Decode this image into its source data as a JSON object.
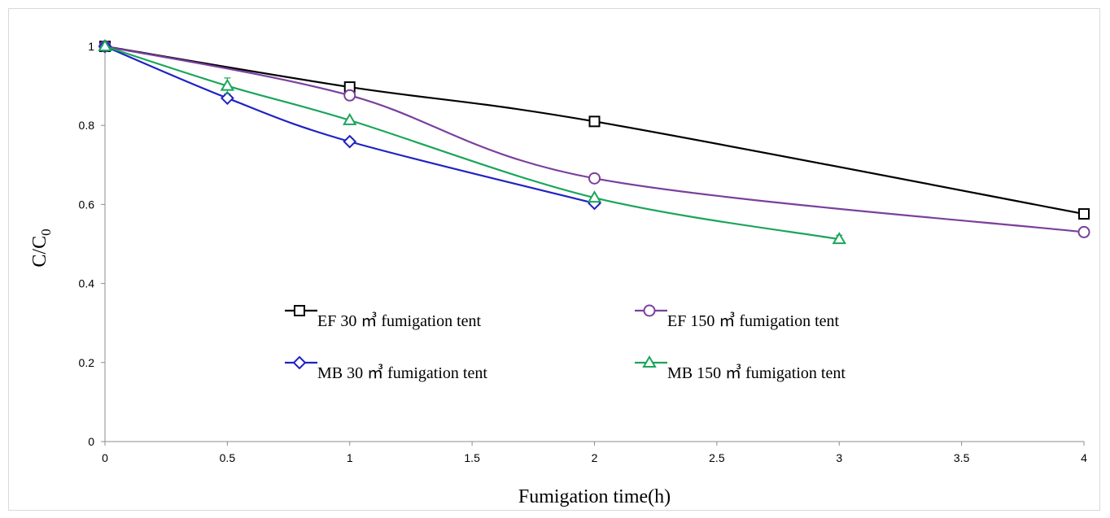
{
  "chart_data": {
    "type": "line",
    "title": "",
    "xlabel": "Fumigation time(h)",
    "ylabel": "C/C",
    "ylabel_subscript": "0",
    "xlim": [
      0,
      4
    ],
    "ylim": [
      0,
      1
    ],
    "x_ticks": [
      "0",
      "0.5",
      "1",
      "1.5",
      "2",
      "2.5",
      "3",
      "3.5",
      "4"
    ],
    "y_ticks": [
      "0",
      "0.2",
      "0.4",
      "0.6",
      "0.8",
      "1"
    ],
    "grid": false,
    "legend_position": "inside-center",
    "series": [
      {
        "name": "EF 30 ㎥ fumigation tent",
        "color": "#000000",
        "marker": "square",
        "x": [
          0,
          1,
          2,
          4
        ],
        "y": [
          1.0,
          0.897,
          0.81,
          0.576
        ]
      },
      {
        "name": "EF 150 ㎥ fumigation tent",
        "color": "#7b3f9e",
        "marker": "circle",
        "x": [
          0,
          1,
          2,
          4
        ],
        "y": [
          1.0,
          0.876,
          0.666,
          0.53
        ],
        "error": [
          0,
          0.012,
          0,
          0
        ]
      },
      {
        "name": "MB 30 ㎥ fumigation tent",
        "color": "#1f22c4",
        "marker": "diamond",
        "x": [
          0,
          0.5,
          1,
          2
        ],
        "y": [
          1.0,
          0.869,
          0.759,
          0.603
        ]
      },
      {
        "name": "MB 150 ㎥ fumigation tent",
        "color": "#1aa55a",
        "marker": "triangle",
        "x": [
          0,
          0.5,
          1,
          2,
          3
        ],
        "y": [
          1.0,
          0.9,
          0.813,
          0.617,
          0.512
        ],
        "error": [
          0,
          0.02,
          0,
          0,
          0.01
        ]
      }
    ]
  }
}
